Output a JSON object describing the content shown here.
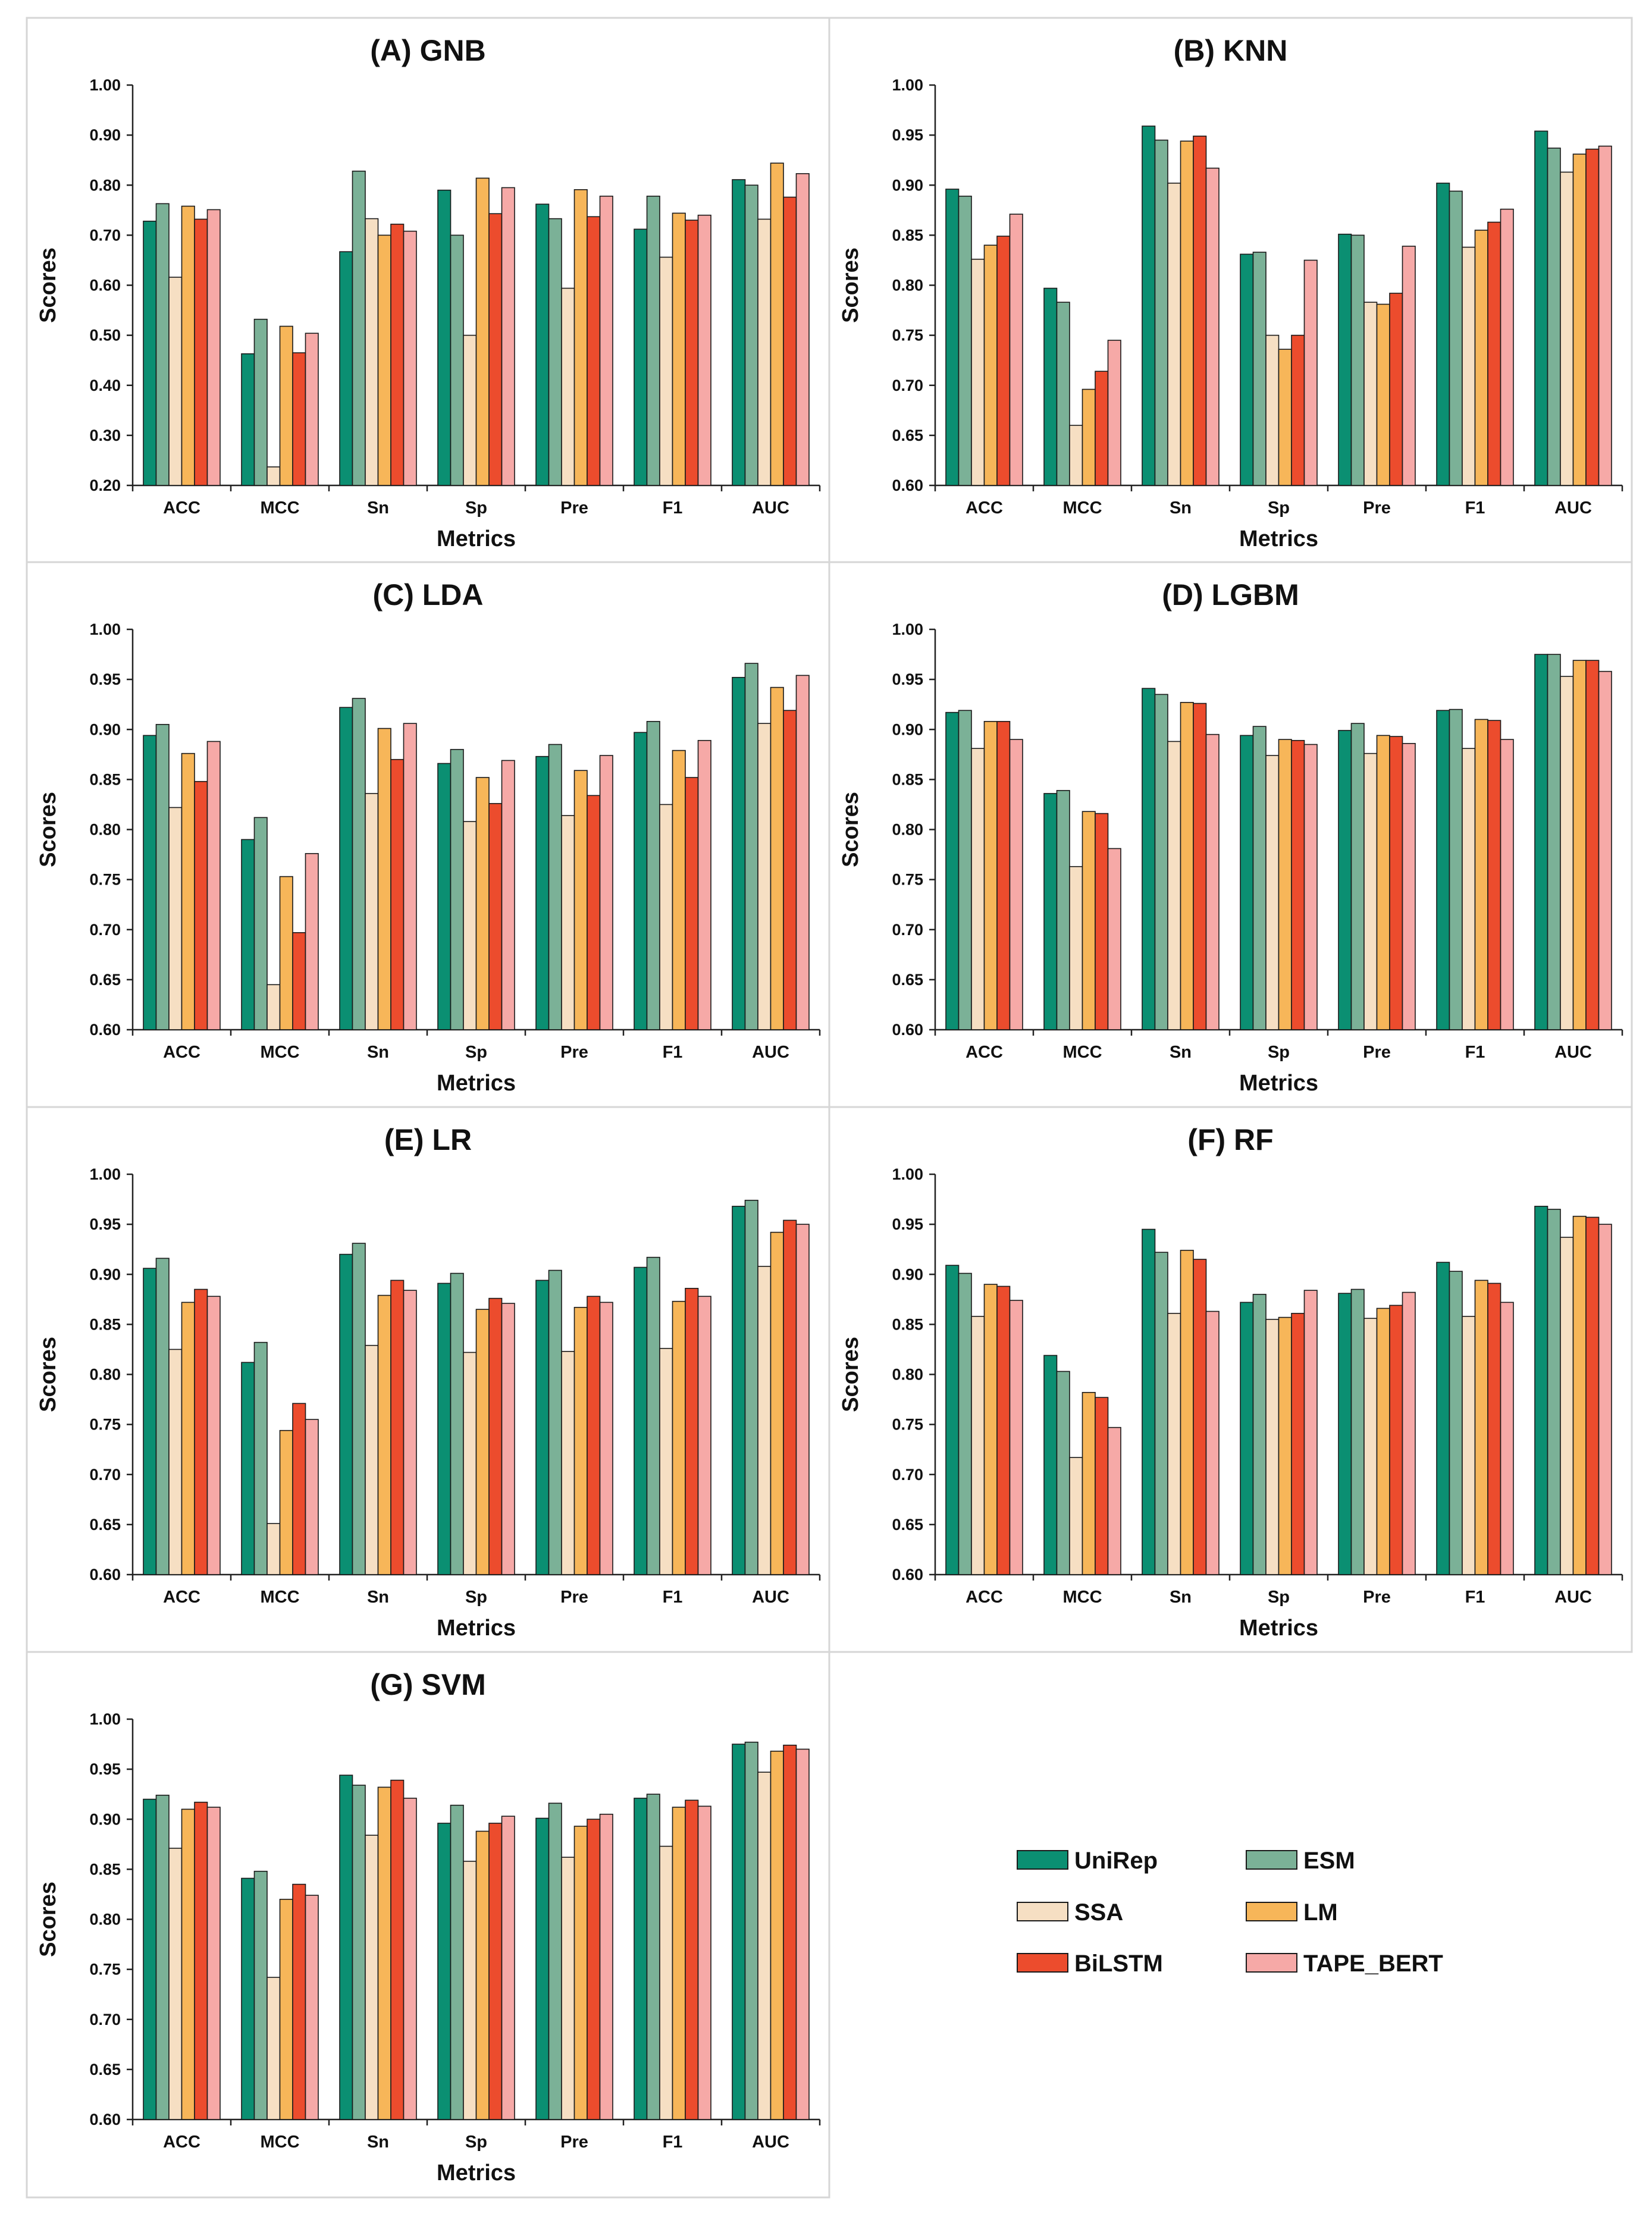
{
  "chart_data": [
    {
      "type": "bar",
      "title": "(A) GNB",
      "xlabel": "Metrics",
      "ylabel": "Scores",
      "ylim": [
        0.2,
        1.0
      ],
      "yticks": [
        "0.20",
        "0.30",
        "0.40",
        "0.50",
        "0.60",
        "0.70",
        "0.80",
        "0.90",
        "1.00"
      ],
      "categories": [
        "ACC",
        "MCC",
        "Sn",
        "Sp",
        "Pre",
        "F1",
        "AUC"
      ],
      "series": [
        {
          "name": "UniRep",
          "values": [
            0.728,
            0.463,
            0.667,
            0.79,
            0.762,
            0.712,
            0.811
          ]
        },
        {
          "name": "ESM",
          "values": [
            0.763,
            0.532,
            0.828,
            0.7,
            0.733,
            0.778,
            0.8
          ]
        },
        {
          "name": "SSA",
          "values": [
            0.616,
            0.237,
            0.733,
            0.5,
            0.594,
            0.656,
            0.732
          ]
        },
        {
          "name": "LM",
          "values": [
            0.758,
            0.518,
            0.7,
            0.814,
            0.791,
            0.744,
            0.844
          ]
        },
        {
          "name": "BiLSTM",
          "values": [
            0.732,
            0.465,
            0.722,
            0.743,
            0.737,
            0.73,
            0.776
          ]
        },
        {
          "name": "TAPE_BERT",
          "values": [
            0.751,
            0.504,
            0.708,
            0.795,
            0.778,
            0.74,
            0.823
          ]
        }
      ]
    },
    {
      "type": "bar",
      "title": "(B) KNN",
      "xlabel": "Metrics",
      "ylabel": "Scores",
      "ylim": [
        0.6,
        1.0
      ],
      "yticks": [
        "0.60",
        "0.65",
        "0.70",
        "0.75",
        "0.80",
        "0.85",
        "0.90",
        "0.95",
        "1.00"
      ],
      "categories": [
        "ACC",
        "MCC",
        "Sn",
        "Sp",
        "Pre",
        "F1",
        "AUC"
      ],
      "series": [
        {
          "name": "UniRep",
          "values": [
            0.896,
            0.797,
            0.959,
            0.831,
            0.851,
            0.902,
            0.954
          ]
        },
        {
          "name": "ESM",
          "values": [
            0.889,
            0.783,
            0.945,
            0.833,
            0.85,
            0.894,
            0.937
          ]
        },
        {
          "name": "SSA",
          "values": [
            0.826,
            0.66,
            0.902,
            0.75,
            0.783,
            0.838,
            0.913
          ]
        },
        {
          "name": "LM",
          "values": [
            0.84,
            0.696,
            0.944,
            0.736,
            0.781,
            0.855,
            0.931
          ]
        },
        {
          "name": "BiLSTM",
          "values": [
            0.849,
            0.714,
            0.949,
            0.75,
            0.792,
            0.863,
            0.936
          ]
        },
        {
          "name": "TAPE_BERT",
          "values": [
            0.871,
            0.745,
            0.917,
            0.825,
            0.839,
            0.876,
            0.939
          ]
        }
      ]
    },
    {
      "type": "bar",
      "title": "(C) LDA",
      "xlabel": "Metrics",
      "ylabel": "Scores",
      "ylim": [
        0.6,
        1.0
      ],
      "yticks": [
        "0.60",
        "0.65",
        "0.70",
        "0.75",
        "0.80",
        "0.85",
        "0.90",
        "0.95",
        "1.00"
      ],
      "categories": [
        "ACC",
        "MCC",
        "Sn",
        "Sp",
        "Pre",
        "F1",
        "AUC"
      ],
      "series": [
        {
          "name": "UniRep",
          "values": [
            0.894,
            0.79,
            0.922,
            0.866,
            0.873,
            0.897,
            0.952
          ]
        },
        {
          "name": "ESM",
          "values": [
            0.905,
            0.812,
            0.931,
            0.88,
            0.885,
            0.908,
            0.966
          ]
        },
        {
          "name": "SSA",
          "values": [
            0.822,
            0.645,
            0.836,
            0.808,
            0.814,
            0.825,
            0.906
          ]
        },
        {
          "name": "LM",
          "values": [
            0.876,
            0.753,
            0.901,
            0.852,
            0.859,
            0.879,
            0.942
          ]
        },
        {
          "name": "BiLSTM",
          "values": [
            0.848,
            0.697,
            0.87,
            0.826,
            0.834,
            0.852,
            0.919
          ]
        },
        {
          "name": "TAPE_BERT",
          "values": [
            0.888,
            0.776,
            0.906,
            0.869,
            0.874,
            0.889,
            0.954
          ]
        }
      ]
    },
    {
      "type": "bar",
      "title": "(D) LGBM",
      "xlabel": "Metrics",
      "ylabel": "Scores",
      "ylim": [
        0.6,
        1.0
      ],
      "yticks": [
        "0.60",
        "0.65",
        "0.70",
        "0.75",
        "0.80",
        "0.85",
        "0.90",
        "0.95",
        "1.00"
      ],
      "categories": [
        "ACC",
        "MCC",
        "Sn",
        "Sp",
        "Pre",
        "F1",
        "AUC"
      ],
      "series": [
        {
          "name": "UniRep",
          "values": [
            0.917,
            0.836,
            0.941,
            0.894,
            0.899,
            0.919,
            0.975
          ]
        },
        {
          "name": "ESM",
          "values": [
            0.919,
            0.839,
            0.935,
            0.903,
            0.906,
            0.92,
            0.975
          ]
        },
        {
          "name": "SSA",
          "values": [
            0.881,
            0.763,
            0.888,
            0.874,
            0.876,
            0.881,
            0.953
          ]
        },
        {
          "name": "LM",
          "values": [
            0.908,
            0.818,
            0.927,
            0.89,
            0.894,
            0.91,
            0.969
          ]
        },
        {
          "name": "BiLSTM",
          "values": [
            0.908,
            0.816,
            0.926,
            0.889,
            0.893,
            0.909,
            0.969
          ]
        },
        {
          "name": "TAPE_BERT",
          "values": [
            0.89,
            0.781,
            0.895,
            0.885,
            0.886,
            0.89,
            0.958
          ]
        }
      ]
    },
    {
      "type": "bar",
      "title": "(E) LR",
      "xlabel": "Metrics",
      "ylabel": "Scores",
      "ylim": [
        0.6,
        1.0
      ],
      "yticks": [
        "0.60",
        "0.65",
        "0.70",
        "0.75",
        "0.80",
        "0.85",
        "0.90",
        "0.95",
        "1.00"
      ],
      "categories": [
        "ACC",
        "MCC",
        "Sn",
        "Sp",
        "Pre",
        "F1",
        "AUC"
      ],
      "series": [
        {
          "name": "UniRep",
          "values": [
            0.906,
            0.812,
            0.92,
            0.891,
            0.894,
            0.907,
            0.968
          ]
        },
        {
          "name": "ESM",
          "values": [
            0.916,
            0.832,
            0.931,
            0.901,
            0.904,
            0.917,
            0.974
          ]
        },
        {
          "name": "SSA",
          "values": [
            0.825,
            0.651,
            0.829,
            0.822,
            0.823,
            0.826,
            0.908
          ]
        },
        {
          "name": "LM",
          "values": [
            0.872,
            0.744,
            0.879,
            0.865,
            0.867,
            0.873,
            0.942
          ]
        },
        {
          "name": "BiLSTM",
          "values": [
            0.885,
            0.771,
            0.894,
            0.876,
            0.878,
            0.886,
            0.954
          ]
        },
        {
          "name": "TAPE_BERT",
          "values": [
            0.878,
            0.755,
            0.884,
            0.871,
            0.872,
            0.878,
            0.95
          ]
        }
      ]
    },
    {
      "type": "bar",
      "title": "(F) RF",
      "xlabel": "Metrics",
      "ylabel": "Scores",
      "ylim": [
        0.6,
        1.0
      ],
      "yticks": [
        "0.60",
        "0.65",
        "0.70",
        "0.75",
        "0.80",
        "0.85",
        "0.90",
        "0.95",
        "1.00"
      ],
      "categories": [
        "ACC",
        "MCC",
        "Sn",
        "Sp",
        "Pre",
        "F1",
        "AUC"
      ],
      "series": [
        {
          "name": "UniRep",
          "values": [
            0.909,
            0.819,
            0.945,
            0.872,
            0.881,
            0.912,
            0.968
          ]
        },
        {
          "name": "ESM",
          "values": [
            0.901,
            0.803,
            0.922,
            0.88,
            0.885,
            0.903,
            0.965
          ]
        },
        {
          "name": "SSA",
          "values": [
            0.858,
            0.717,
            0.861,
            0.855,
            0.856,
            0.858,
            0.937
          ]
        },
        {
          "name": "LM",
          "values": [
            0.89,
            0.782,
            0.924,
            0.857,
            0.866,
            0.894,
            0.958
          ]
        },
        {
          "name": "BiLSTM",
          "values": [
            0.888,
            0.777,
            0.915,
            0.861,
            0.869,
            0.891,
            0.957
          ]
        },
        {
          "name": "TAPE_BERT",
          "values": [
            0.874,
            0.747,
            0.863,
            0.884,
            0.882,
            0.872,
            0.95
          ]
        }
      ]
    },
    {
      "type": "bar",
      "title": "(G) SVM",
      "xlabel": "Metrics",
      "ylabel": "Scores",
      "ylim": [
        0.6,
        1.0
      ],
      "yticks": [
        "0.60",
        "0.65",
        "0.70",
        "0.75",
        "0.80",
        "0.85",
        "0.90",
        "0.95",
        "1.00"
      ],
      "categories": [
        "ACC",
        "MCC",
        "Sn",
        "Sp",
        "Pre",
        "F1",
        "AUC"
      ],
      "series": [
        {
          "name": "UniRep",
          "values": [
            0.92,
            0.841,
            0.944,
            0.896,
            0.901,
            0.921,
            0.975
          ]
        },
        {
          "name": "ESM",
          "values": [
            0.924,
            0.848,
            0.934,
            0.914,
            0.916,
            0.925,
            0.977
          ]
        },
        {
          "name": "SSA",
          "values": [
            0.871,
            0.742,
            0.884,
            0.858,
            0.862,
            0.873,
            0.947
          ]
        },
        {
          "name": "LM",
          "values": [
            0.91,
            0.82,
            0.932,
            0.888,
            0.893,
            0.912,
            0.968
          ]
        },
        {
          "name": "BiLSTM",
          "values": [
            0.917,
            0.835,
            0.939,
            0.896,
            0.9,
            0.919,
            0.974
          ]
        },
        {
          "name": "TAPE_BERT",
          "values": [
            0.912,
            0.824,
            0.921,
            0.903,
            0.905,
            0.913,
            0.97
          ]
        }
      ]
    }
  ],
  "legend": {
    "items": [
      {
        "name": "UniRep",
        "color": "#0b8f72"
      },
      {
        "name": "ESM",
        "color": "#7bb197"
      },
      {
        "name": "SSA",
        "color": "#f6dfc3"
      },
      {
        "name": "LM",
        "color": "#f7b659"
      },
      {
        "name": "BiLSTM",
        "color": "#ec4c2d"
      },
      {
        "name": "TAPE_BERT",
        "color": "#f6a9a7"
      }
    ]
  }
}
